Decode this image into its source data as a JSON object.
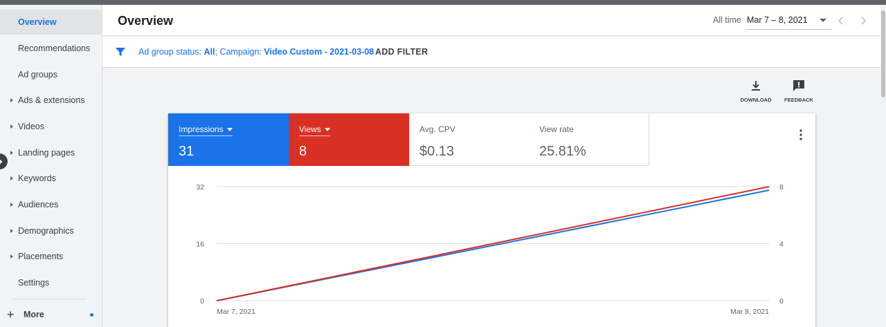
{
  "sidebar": {
    "items": [
      {
        "label": "Overview",
        "active": true,
        "caret": false
      },
      {
        "label": "Recommendations",
        "active": false,
        "caret": false
      },
      {
        "label": "Ad groups",
        "active": false,
        "caret": false
      },
      {
        "label": "Ads & extensions",
        "active": false,
        "caret": true
      },
      {
        "label": "Videos",
        "active": false,
        "caret": true
      },
      {
        "label": "Landing pages",
        "active": false,
        "caret": true
      },
      {
        "label": "Keywords",
        "active": false,
        "caret": true
      },
      {
        "label": "Audiences",
        "active": false,
        "caret": true
      },
      {
        "label": "Demographics",
        "active": false,
        "caret": true
      },
      {
        "label": "Placements",
        "active": false,
        "caret": true
      },
      {
        "label": "Settings",
        "active": false,
        "caret": false
      }
    ],
    "more_label": "More"
  },
  "header": {
    "title": "Overview",
    "date_range_label": "All time",
    "date_range_value": "Mar 7 – 8, 2021"
  },
  "filter": {
    "status_prefix": "Ad group status: ",
    "status_value": "All",
    "campaign_prefix": "; Campaign: ",
    "campaign_value": "Video Custom - 2021-03-08",
    "add_filter_label": "ADD FILTER"
  },
  "toolbar": {
    "download_label": "DOWNLOAD",
    "feedback_label": "FEEDBACK"
  },
  "metrics": [
    {
      "label": "Impressions",
      "value": "31",
      "color": "#1a73e8",
      "selected": true
    },
    {
      "label": "Views",
      "value": "8",
      "color": "#d93025",
      "selected": true
    },
    {
      "label": "Avg. CPV",
      "value": "$0.13",
      "selected": false
    },
    {
      "label": "View rate",
      "value": "25.81%",
      "selected": false
    }
  ],
  "chart_data": {
    "type": "line",
    "x": [
      "Mar 7, 2021",
      "Mar 8, 2021"
    ],
    "series": [
      {
        "name": "Impressions",
        "values": [
          0,
          31
        ],
        "color": "#1a73e8",
        "axis": "left"
      },
      {
        "name": "Views",
        "values": [
          0,
          8
        ],
        "color": "#d93025",
        "axis": "right"
      }
    ],
    "y_left": {
      "ticks": [
        "32",
        "16",
        "0"
      ],
      "ylim": [
        0,
        32
      ]
    },
    "y_right": {
      "ticks": [
        "8",
        "4",
        "0"
      ],
      "ylim": [
        0,
        8
      ]
    },
    "grid": true
  }
}
